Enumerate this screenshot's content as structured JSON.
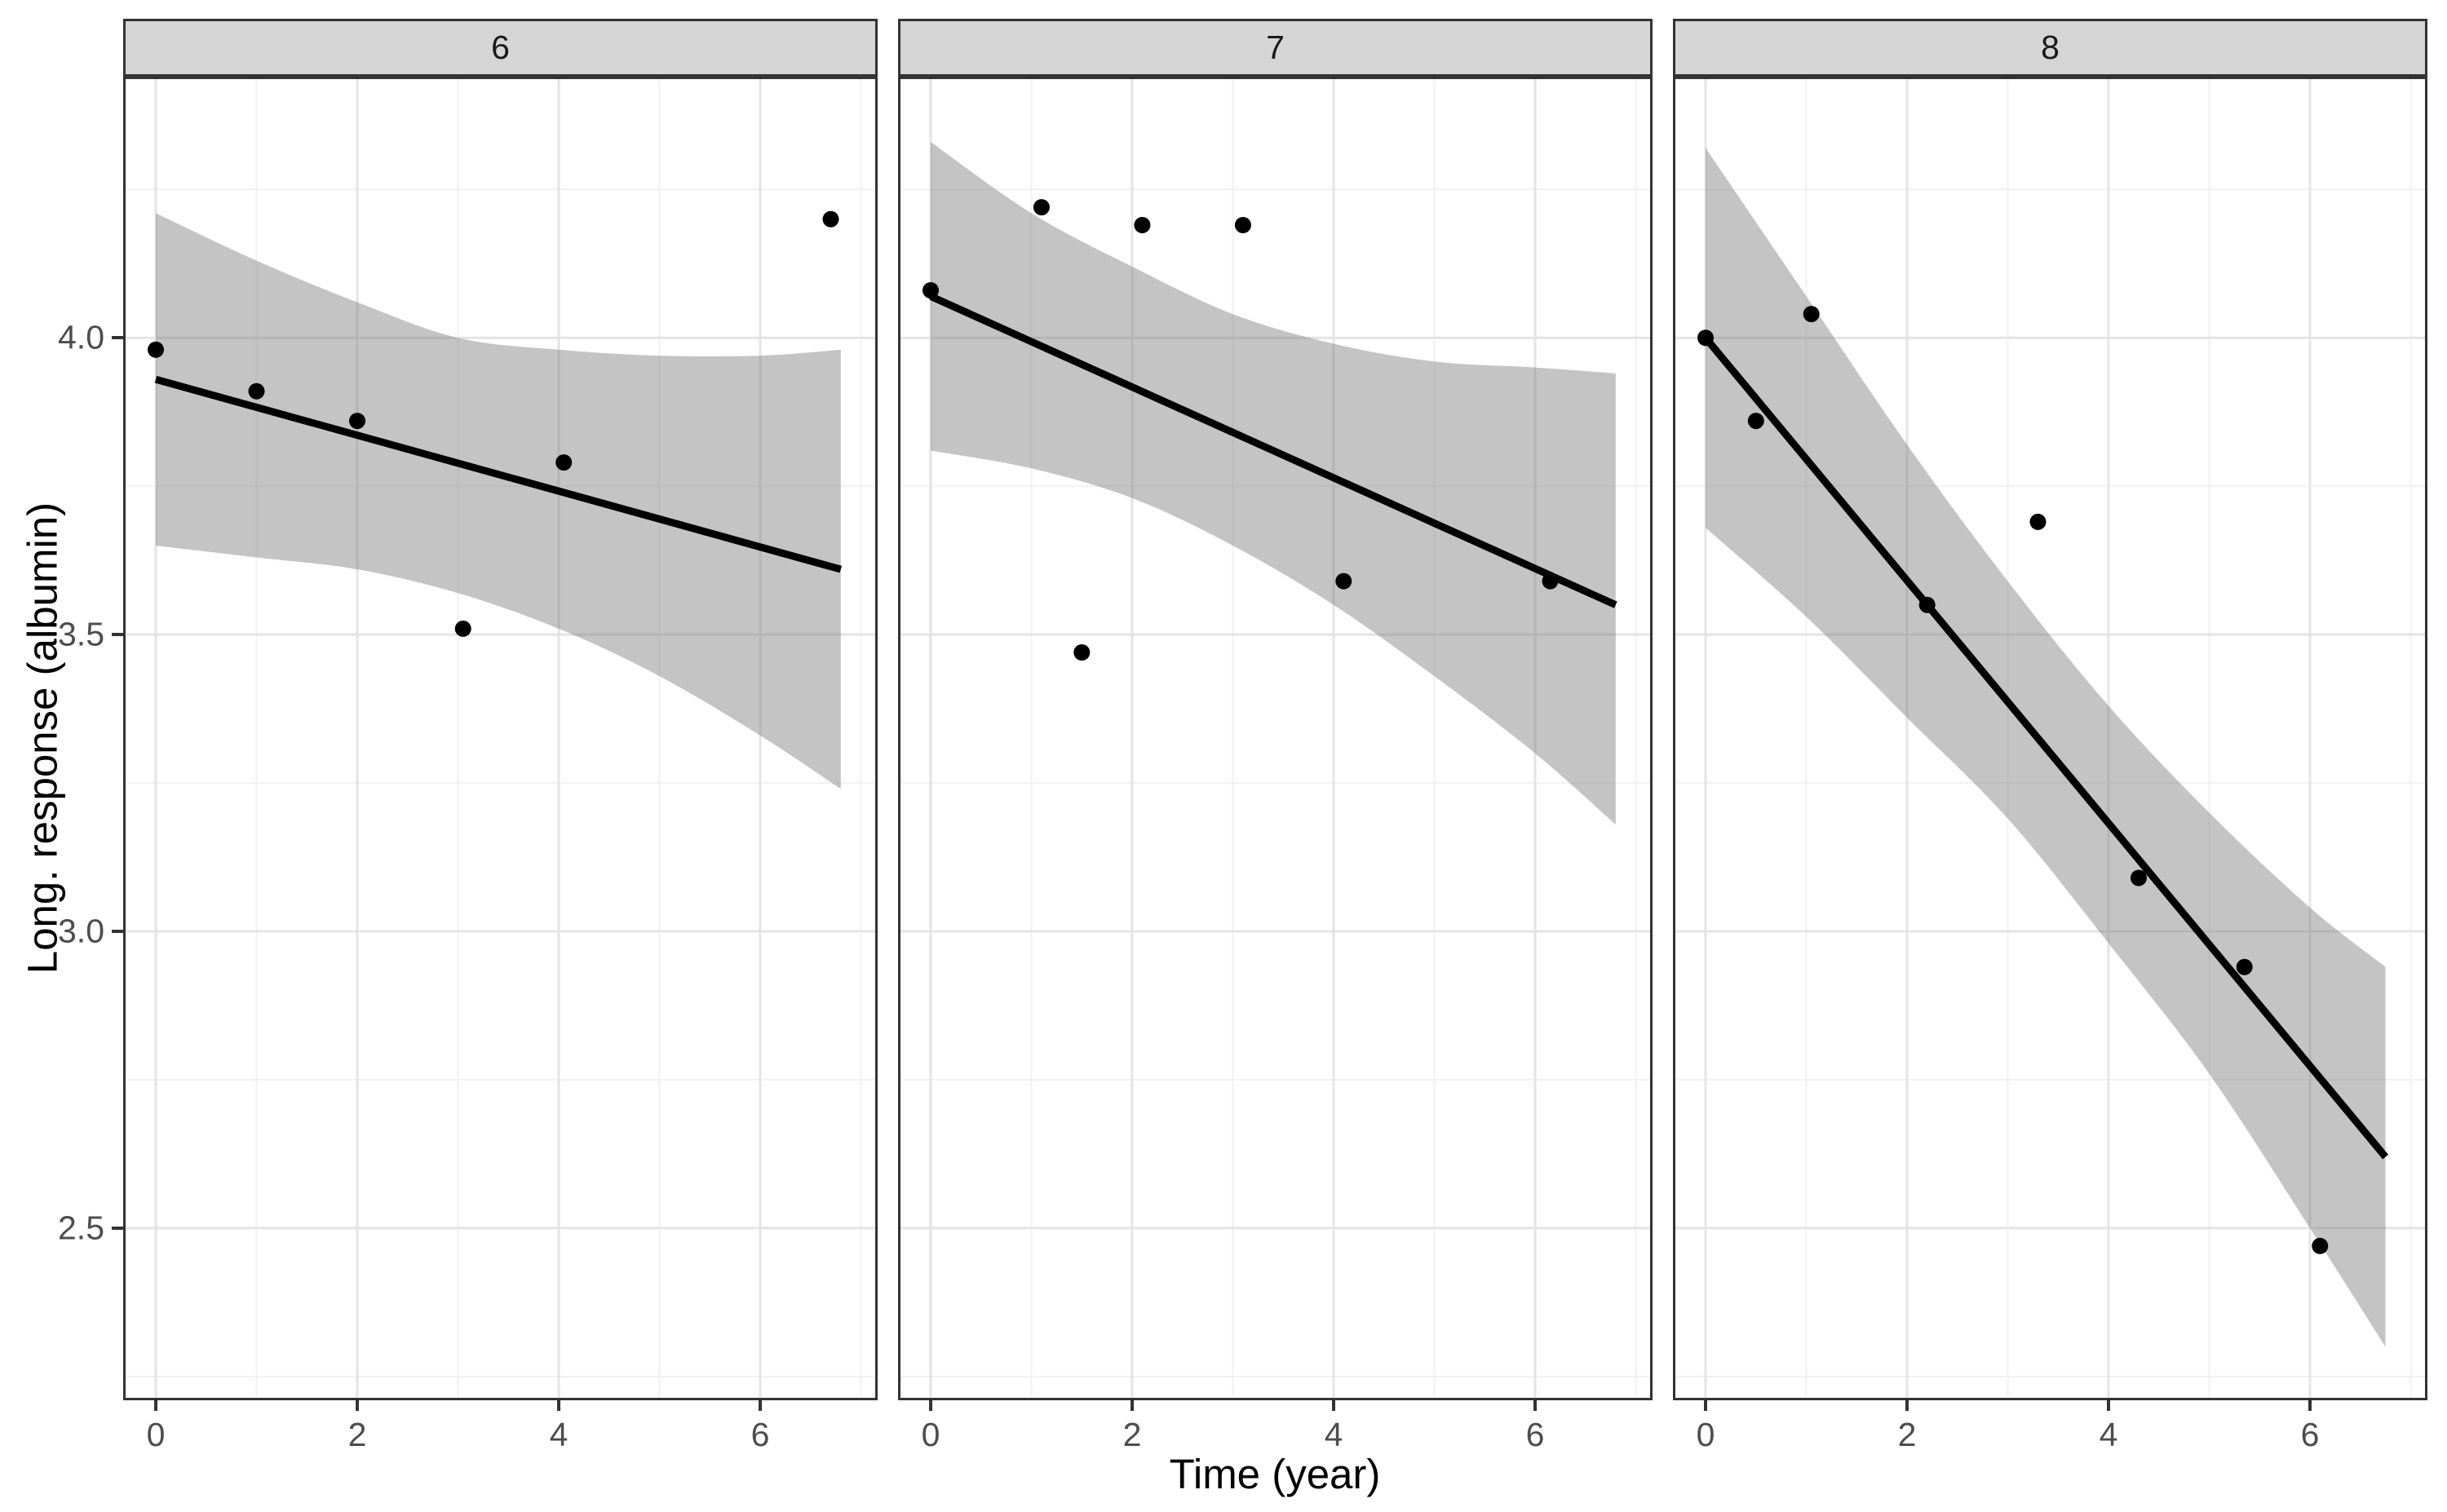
{
  "figure": {
    "x_axis_title": "Time (year)",
    "y_axis_title": "Long. response (albumin)"
  },
  "chart_data": {
    "type": "scatter",
    "description": "Faceted scatter plots with linear smooth lines and confidence ribbons, one panel per subject id",
    "xlabel": "Time (year)",
    "ylabel": "Long. response (albumin)",
    "legend_position": "none",
    "grid": true,
    "xlim": [
      -0.324,
      7.166
    ],
    "ylim": [
      2.21,
      4.44
    ],
    "x_ticks": [
      {
        "v": 0,
        "label": "0"
      },
      {
        "v": 2,
        "label": "2"
      },
      {
        "v": 4,
        "label": "4"
      },
      {
        "v": 6,
        "label": "6"
      }
    ],
    "y_ticks": [
      {
        "v": 2.5,
        "label": "2.5"
      },
      {
        "v": 3.0,
        "label": "3.0"
      },
      {
        "v": 3.5,
        "label": "3.5"
      },
      {
        "v": 4.0,
        "label": "4.0"
      }
    ],
    "x_minor": [
      1,
      3,
      5,
      7
    ],
    "y_minor": [
      2.25,
      2.75,
      3.25,
      3.75,
      4.25
    ],
    "colors": {
      "point": "#000000",
      "line": "#000000",
      "ribbon": "rgba(125,125,125,0.45)",
      "grid_major": "#e4e4e4",
      "grid_minor": "#f1f1f1",
      "panel_bg": "#ffffff",
      "panel_border": "#333333",
      "strip_fill": "#d5d5d5",
      "strip_border": "#333333",
      "tick": "#333333",
      "tick_label": "#4d4d4d"
    },
    "facets": [
      {
        "label": "6",
        "points": [
          [
            0,
            3.98
          ],
          [
            1,
            3.91
          ],
          [
            2,
            3.86
          ],
          [
            3.05,
            3.51
          ],
          [
            4.05,
            3.79
          ],
          [
            6.7,
            4.2
          ]
        ],
        "line": [
          [
            0,
            3.93
          ],
          [
            6.8,
            3.61
          ]
        ],
        "ribbon": {
          "x": [
            0,
            1,
            2,
            3,
            4,
            5,
            6,
            6.8
          ],
          "upper": [
            4.21,
            4.13,
            4.06,
            4.0,
            3.98,
            3.97,
            3.97,
            3.98
          ],
          "lower": [
            3.65,
            3.63,
            3.61,
            3.57,
            3.51,
            3.43,
            3.33,
            3.24
          ]
        }
      },
      {
        "label": "7",
        "points": [
          [
            0,
            4.08
          ],
          [
            1.1,
            4.22
          ],
          [
            1.5,
            3.47
          ],
          [
            2.1,
            4.19
          ],
          [
            3.1,
            4.19
          ],
          [
            4.1,
            3.59
          ],
          [
            6.15,
            3.59
          ]
        ],
        "line": [
          [
            0,
            4.07
          ],
          [
            6.8,
            3.55
          ]
        ],
        "ribbon": {
          "x": [
            0,
            1,
            2,
            3,
            4,
            5,
            6,
            6.8
          ],
          "upper": [
            4.33,
            4.21,
            4.12,
            4.04,
            3.99,
            3.96,
            3.95,
            3.94
          ],
          "lower": [
            3.81,
            3.78,
            3.73,
            3.65,
            3.55,
            3.43,
            3.3,
            3.18
          ]
        }
      },
      {
        "label": "8",
        "points": [
          [
            0,
            4.0
          ],
          [
            0.5,
            3.86
          ],
          [
            1.05,
            4.04
          ],
          [
            2.2,
            3.55
          ],
          [
            3.3,
            3.69
          ],
          [
            4.3,
            3.09
          ],
          [
            5.35,
            2.94
          ],
          [
            6.1,
            2.47
          ]
        ],
        "line": [
          [
            0,
            4.0
          ],
          [
            6.75,
            2.62
          ]
        ],
        "ribbon": {
          "x": [
            0,
            1,
            2,
            3,
            4,
            5,
            6,
            6.75
          ],
          "upper": [
            4.32,
            4.07,
            3.82,
            3.59,
            3.38,
            3.2,
            3.04,
            2.94
          ],
          "lower": [
            3.68,
            3.53,
            3.36,
            3.19,
            2.98,
            2.76,
            2.5,
            2.3
          ]
        }
      }
    ]
  }
}
